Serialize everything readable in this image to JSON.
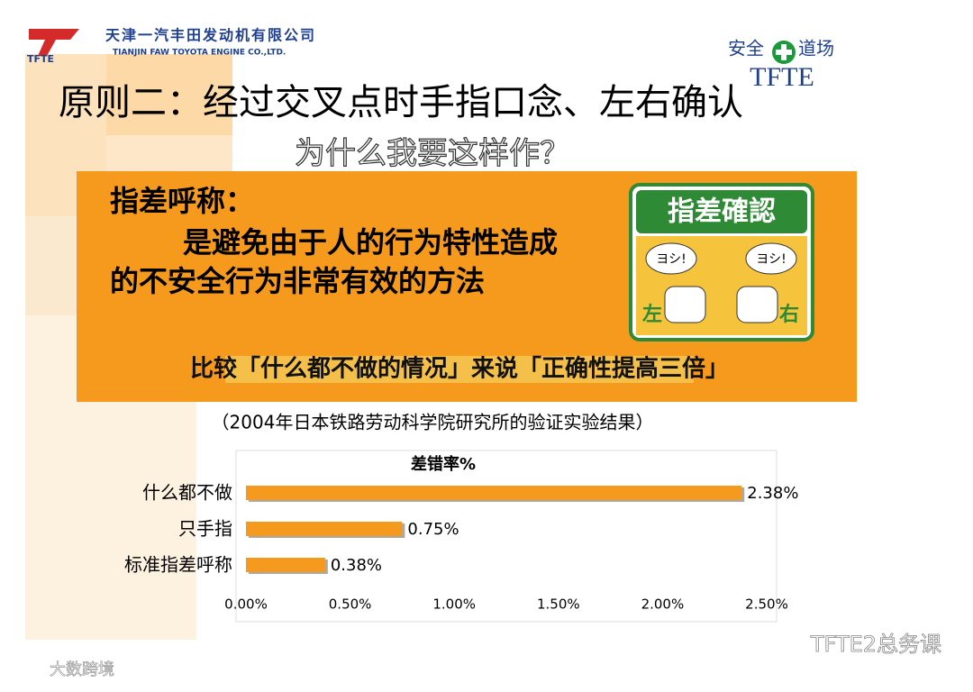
{
  "header": {
    "logo": "TFTE",
    "company_cn": "天津一汽丰田发动机有限公司",
    "company_en": "TIANJIN FAW TOYOTA ENGINE CO.,LTD."
  },
  "safety_badge": {
    "left": "安全",
    "right": "道场",
    "text": "TFTE"
  },
  "title": "原则二：经过交叉点时手指口念、左右确认",
  "subtitle": "为什么我要这样作？",
  "panel": {
    "heading": "指差呼称：",
    "body_line1": "是避免由于人的行为特性造成",
    "body_line2": "的不安全行为非常有效的方法",
    "conclusion": "比较「什么都不做的情况」来说「正确性提高三倍」"
  },
  "sign": {
    "title": "指差確認",
    "bubble_left": "ヨシ!",
    "bubble_right": "ヨシ!",
    "left": "左",
    "right": "右"
  },
  "source_note": "（2004年日本铁路劳动科学院研究所的验证实验结果）",
  "chart_data": {
    "type": "hbar",
    "title": "差错率%",
    "categories": [
      "什么都不做",
      "只手指",
      "标准指差呼称"
    ],
    "values": [
      2.38,
      0.75,
      0.38
    ],
    "value_labels": [
      "2.38%",
      "0.75%",
      "0.38%"
    ],
    "color": "#f39a1f",
    "xlim": [
      0,
      2.5
    ],
    "xticks": [
      {
        "value": 0,
        "label": "0.00%"
      },
      {
        "value": 0.5,
        "label": "0.50%"
      },
      {
        "value": 1,
        "label": "1.00%"
      },
      {
        "value": 1.5,
        "label": "1.50%"
      },
      {
        "value": 2,
        "label": "2.00%"
      },
      {
        "value": 2.5,
        "label": "2.50%"
      }
    ]
  },
  "watermarks": {
    "right": "TFTE2总务课",
    "left": "大数跨境"
  }
}
